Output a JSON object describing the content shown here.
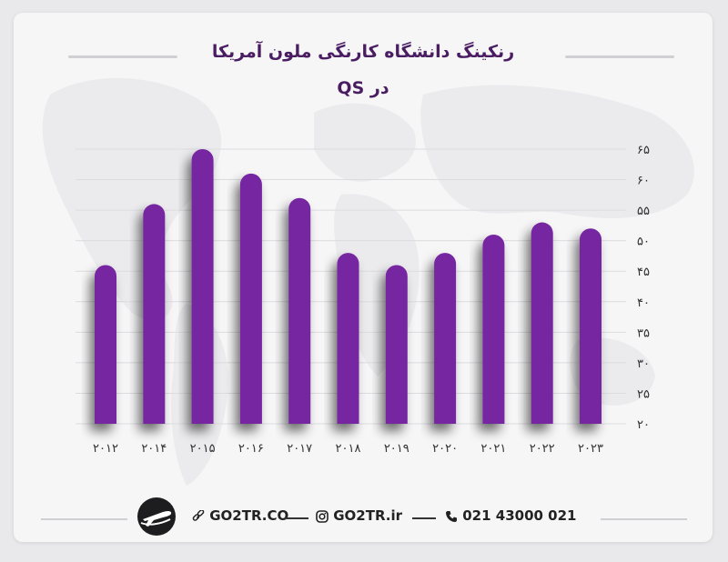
{
  "title": {
    "line1": "رنکینگ دانشگاه کارنگی ملون آمریکا",
    "line2": "در QS"
  },
  "chart_data": {
    "type": "bar",
    "title": "رنکینگ دانشگاه کارنگی ملون آمریکا در QS",
    "categories": [
      "۲۰۱۲",
      "۲۰۱۴",
      "۲۰۱۵",
      "۲۰۱۶",
      "۲۰۱۷",
      "۲۰۱۸",
      "۲۰۱۹",
      "۲۰۲۰",
      "۲۰۲۱",
      "۲۰۲۲",
      "۲۰۲۳"
    ],
    "values": [
      46,
      56,
      65,
      61,
      57,
      48,
      46,
      48,
      51,
      53,
      52
    ],
    "ylim": [
      20,
      65
    ],
    "yticks": [
      "۲۰",
      "۲۵",
      "۳۰",
      "۳۵",
      "۴۰",
      "۴۵",
      "۵۰",
      "۵۵",
      "۶۰",
      "۶۵"
    ],
    "ytick_values": [
      20,
      25,
      30,
      35,
      40,
      45,
      50,
      55,
      60,
      65
    ],
    "yaxis_side": "right",
    "grid": true,
    "bar_color": "#7526a0"
  },
  "footer": {
    "website": "GO2TR.CO",
    "instagram": "GO2TR.ir",
    "phone": "021 43000 021",
    "link_icon": "link-icon",
    "instagram_icon": "instagram-icon",
    "phone_icon": "phone-icon",
    "logo_icon": "airplane-logo-icon"
  }
}
